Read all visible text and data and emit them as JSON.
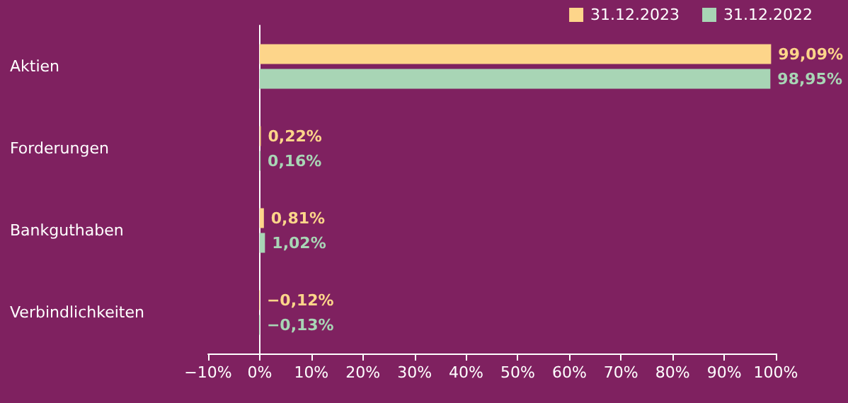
{
  "chart_data": {
    "type": "bar",
    "orientation": "horizontal",
    "categories": [
      "Aktien",
      "Forderungen",
      "Bankguthaben",
      "Verbindlichkeiten"
    ],
    "series": [
      {
        "name": "31.12.2023",
        "color": "#fdd58a",
        "values": [
          99.09,
          0.22,
          0.81,
          -0.12
        ],
        "value_labels": [
          "99,09%",
          "0,22%",
          "0,81%",
          "−0,12%"
        ]
      },
      {
        "name": "31.12.2022",
        "color": "#a8d5b5",
        "values": [
          98.95,
          0.16,
          1.02,
          -0.13
        ],
        "value_labels": [
          "98,95%",
          "0,16%",
          "1,02%",
          "−0,13%"
        ]
      }
    ],
    "xlim": [
      -10,
      100
    ],
    "xticks": [
      {
        "value": -10,
        "label": "−10%"
      },
      {
        "value": 0,
        "label": "0%"
      },
      {
        "value": 10,
        "label": "10%"
      },
      {
        "value": 20,
        "label": "20%"
      },
      {
        "value": 30,
        "label": "30%"
      },
      {
        "value": 40,
        "label": "40%"
      },
      {
        "value": 50,
        "label": "50%"
      },
      {
        "value": 60,
        "label": "60%"
      },
      {
        "value": 70,
        "label": "70%"
      },
      {
        "value": 80,
        "label": "80%"
      },
      {
        "value": 90,
        "label": "90%"
      },
      {
        "value": 100,
        "label": "100%"
      }
    ],
    "legend": "top right"
  }
}
